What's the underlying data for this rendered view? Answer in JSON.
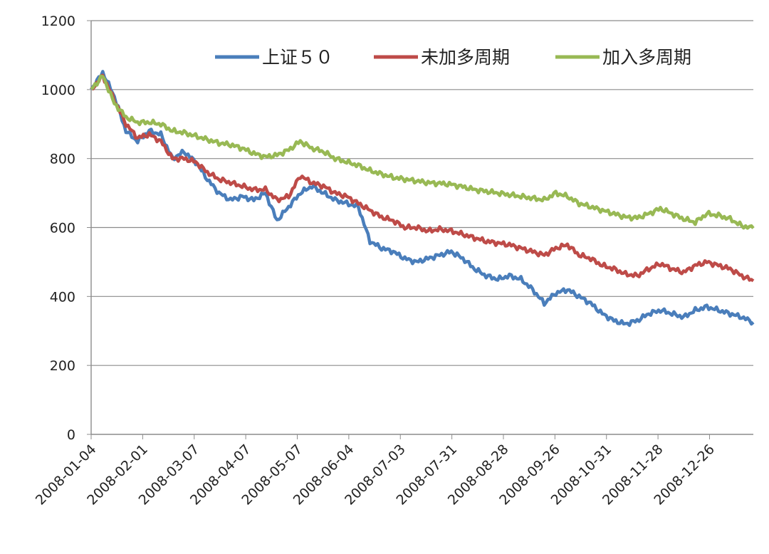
{
  "chart_data": {
    "type": "line",
    "title": "",
    "xlabel": "",
    "ylabel": "",
    "ylim": [
      0,
      1200
    ],
    "yticks": [
      0,
      200,
      400,
      600,
      800,
      1000,
      1200
    ],
    "xtick_labels": [
      "2008-01-04",
      "2008-02-01",
      "2008-03-07",
      "2008-04-07",
      "2008-05-07",
      "2008-06-04",
      "2008-07-03",
      "2008-07-31",
      "2008-08-28",
      "2008-09-26",
      "2008-10-31",
      "2008-11-28",
      "2008-12-26"
    ],
    "legend_position": "top",
    "grid": "horizontal",
    "series": [
      {
        "name": "上证５０",
        "color": "#4a7ebb",
        "values": [
          1000,
          1050,
          980,
          880,
          850,
          880,
          870,
          800,
          820,
          790,
          740,
          700,
          680,
          690,
          680,
          700,
          620,
          660,
          700,
          720,
          700,
          680,
          670,
          660,
          560,
          540,
          530,
          510,
          500,
          510,
          520,
          530,
          510,
          480,
          460,
          450,
          460,
          450,
          420,
          380,
          410,
          420,
          400,
          380,
          350,
          330,
          320,
          330,
          350,
          360,
          350,
          340,
          360,
          370,
          360,
          350,
          340,
          325
        ]
      },
      {
        "name": "未加多周期",
        "color": "#be4b48",
        "values": [
          1000,
          1040,
          970,
          900,
          860,
          870,
          850,
          800,
          800,
          790,
          760,
          740,
          730,
          720,
          710,
          710,
          680,
          690,
          750,
          730,
          720,
          700,
          690,
          670,
          650,
          630,
          620,
          600,
          600,
          590,
          595,
          590,
          580,
          570,
          560,
          555,
          550,
          540,
          530,
          520,
          540,
          550,
          520,
          510,
          490,
          480,
          465,
          460,
          480,
          495,
          480,
          470,
          490,
          500,
          490,
          480,
          460,
          445
        ]
      },
      {
        "name": "加入多周期",
        "color": "#98b954",
        "values": [
          1000,
          1040,
          960,
          920,
          905,
          905,
          900,
          880,
          875,
          865,
          855,
          845,
          840,
          830,
          815,
          805,
          810,
          825,
          850,
          830,
          820,
          800,
          790,
          780,
          765,
          755,
          745,
          740,
          735,
          730,
          728,
          725,
          718,
          710,
          705,
          700,
          695,
          690,
          685,
          680,
          700,
          690,
          670,
          660,
          650,
          640,
          630,
          628,
          640,
          655,
          640,
          625,
          615,
          640,
          635,
          625,
          605,
          598
        ]
      }
    ]
  }
}
